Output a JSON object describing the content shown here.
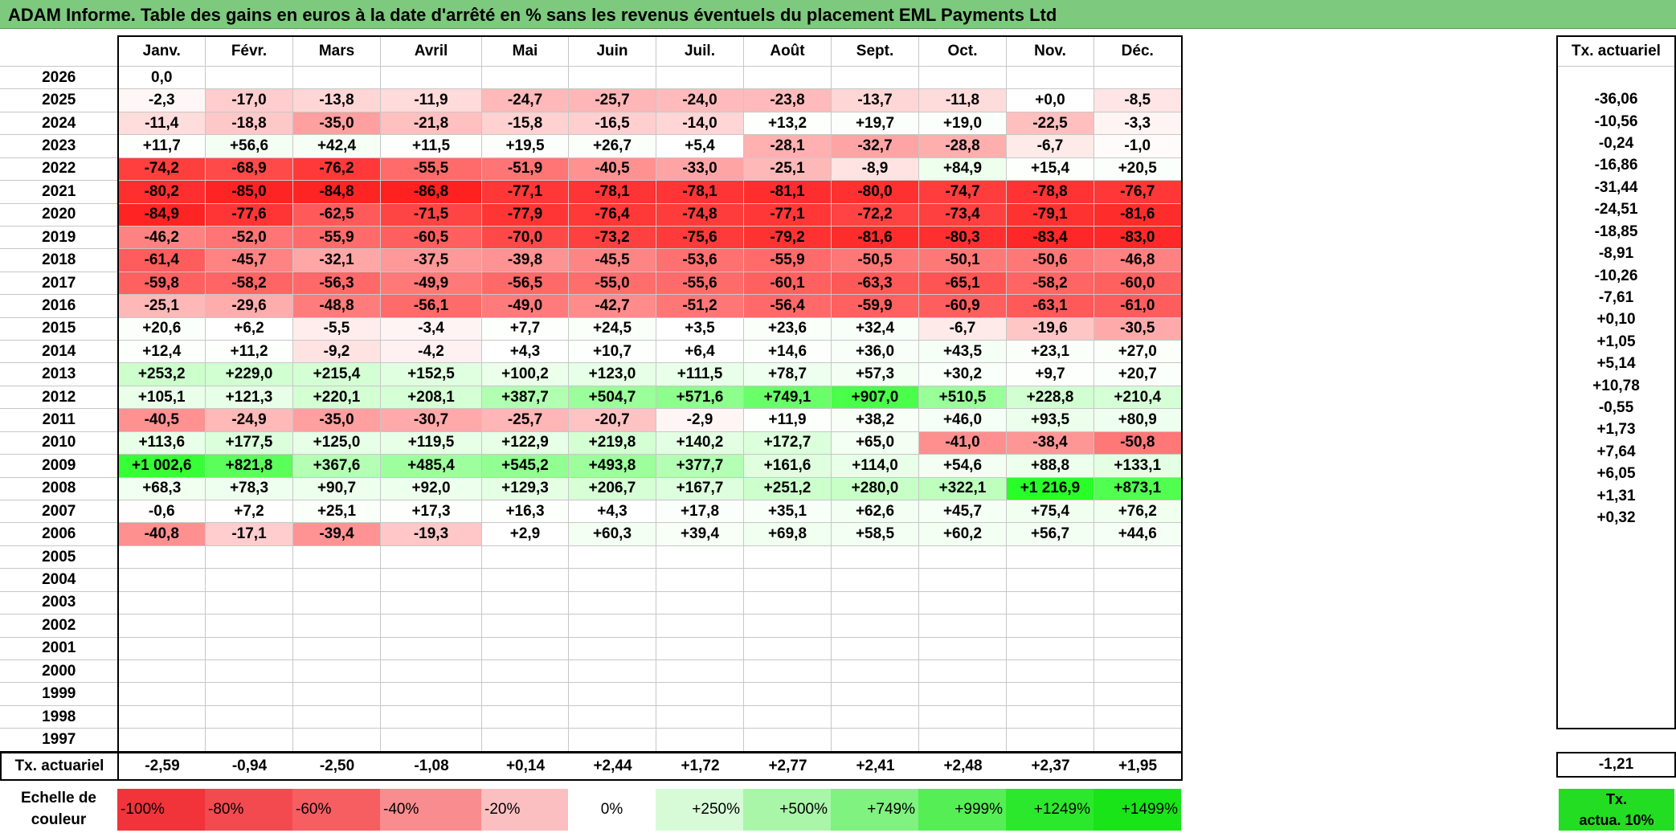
{
  "title": "ADAM Informe. Table des gains en euros à la date d'arrêté en % sans les revenus éventuels du placement EML Payments Ltd",
  "months": [
    "Janv.",
    "Févr.",
    "Mars",
    "Avril",
    "Mai",
    "Juin",
    "Juil.",
    "Août",
    "Sept.",
    "Oct.",
    "Nov.",
    "Déc."
  ],
  "annual_header": "Tx. actuariel",
  "rows": [
    {
      "year": "2026",
      "values": [
        "0,0",
        "",
        "",
        "",
        "",
        "",
        "",
        "",
        "",
        "",
        "",
        ""
      ],
      "rate": ""
    },
    {
      "year": "2025",
      "values": [
        "-2,3",
        "-17,0",
        "-13,8",
        "-11,9",
        "-24,7",
        "-25,7",
        "-24,0",
        "-23,8",
        "-13,7",
        "-11,8",
        "+0,0",
        "-8,5"
      ],
      "rate": "-36,06"
    },
    {
      "year": "2024",
      "values": [
        "-11,4",
        "-18,8",
        "-35,0",
        "-21,8",
        "-15,8",
        "-16,5",
        "-14,0",
        "+13,2",
        "+19,7",
        "+19,0",
        "-22,5",
        "-3,3"
      ],
      "rate": "-10,56"
    },
    {
      "year": "2023",
      "values": [
        "+11,7",
        "+56,6",
        "+42,4",
        "+11,5",
        "+19,5",
        "+26,7",
        "+5,4",
        "-28,1",
        "-32,7",
        "-28,8",
        "-6,7",
        "-1,0"
      ],
      "rate": "-0,24"
    },
    {
      "year": "2022",
      "values": [
        "-74,2",
        "-68,9",
        "-76,2",
        "-55,5",
        "-51,9",
        "-40,5",
        "-33,0",
        "-25,1",
        "-8,9",
        "+84,9",
        "+15,4",
        "+20,5"
      ],
      "rate": "-16,86"
    },
    {
      "year": "2021",
      "values": [
        "-80,2",
        "-85,0",
        "-84,8",
        "-86,8",
        "-77,1",
        "-78,1",
        "-78,1",
        "-81,1",
        "-80,0",
        "-74,7",
        "-78,8",
        "-76,7"
      ],
      "rate": "-31,44"
    },
    {
      "year": "2020",
      "values": [
        "-84,9",
        "-77,6",
        "-62,5",
        "-71,5",
        "-77,9",
        "-76,4",
        "-74,8",
        "-77,1",
        "-72,2",
        "-73,4",
        "-79,1",
        "-81,6"
      ],
      "rate": "-24,51"
    },
    {
      "year": "2019",
      "values": [
        "-46,2",
        "-52,0",
        "-55,9",
        "-60,5",
        "-70,0",
        "-73,2",
        "-75,6",
        "-79,2",
        "-81,6",
        "-80,3",
        "-83,4",
        "-83,0"
      ],
      "rate": "-18,85"
    },
    {
      "year": "2018",
      "values": [
        "-61,4",
        "-45,7",
        "-32,1",
        "-37,5",
        "-39,8",
        "-45,5",
        "-53,6",
        "-55,9",
        "-50,5",
        "-50,1",
        "-50,6",
        "-46,8"
      ],
      "rate": "-8,91"
    },
    {
      "year": "2017",
      "values": [
        "-59,8",
        "-58,2",
        "-56,3",
        "-49,9",
        "-56,5",
        "-55,0",
        "-55,6",
        "-60,1",
        "-63,3",
        "-65,1",
        "-58,2",
        "-60,0"
      ],
      "rate": "-10,26"
    },
    {
      "year": "2016",
      "values": [
        "-25,1",
        "-29,6",
        "-48,8",
        "-56,1",
        "-49,0",
        "-42,7",
        "-51,2",
        "-56,4",
        "-59,9",
        "-60,9",
        "-63,1",
        "-61,0"
      ],
      "rate": "-7,61"
    },
    {
      "year": "2015",
      "values": [
        "+20,6",
        "+6,2",
        "-5,5",
        "-3,4",
        "+7,7",
        "+24,5",
        "+3,5",
        "+23,6",
        "+32,4",
        "-6,7",
        "-19,6",
        "-30,5"
      ],
      "rate": "+0,10"
    },
    {
      "year": "2014",
      "values": [
        "+12,4",
        "+11,2",
        "-9,2",
        "-4,2",
        "+4,3",
        "+10,7",
        "+6,4",
        "+14,6",
        "+36,0",
        "+43,5",
        "+23,1",
        "+27,0"
      ],
      "rate": "+1,05"
    },
    {
      "year": "2013",
      "values": [
        "+253,2",
        "+229,0",
        "+215,4",
        "+152,5",
        "+100,2",
        "+123,0",
        "+111,5",
        "+78,7",
        "+57,3",
        "+30,2",
        "+9,7",
        "+20,7"
      ],
      "rate": "+5,14"
    },
    {
      "year": "2012",
      "values": [
        "+105,1",
        "+121,3",
        "+220,1",
        "+208,1",
        "+387,7",
        "+504,7",
        "+571,6",
        "+749,1",
        "+907,0",
        "+510,5",
        "+228,8",
        "+210,4"
      ],
      "rate": "+10,78"
    },
    {
      "year": "2011",
      "values": [
        "-40,5",
        "-24,9",
        "-35,0",
        "-30,7",
        "-25,7",
        "-20,7",
        "-2,9",
        "+11,9",
        "+38,2",
        "+46,0",
        "+93,5",
        "+80,9"
      ],
      "rate": "-0,55"
    },
    {
      "year": "2010",
      "values": [
        "+113,6",
        "+177,5",
        "+125,0",
        "+119,5",
        "+122,9",
        "+219,8",
        "+140,2",
        "+172,7",
        "+65,0",
        "-41,0",
        "-38,4",
        "-50,8"
      ],
      "rate": "+1,73"
    },
    {
      "year": "2009",
      "values": [
        "+1 002,6",
        "+821,8",
        "+367,6",
        "+485,4",
        "+545,2",
        "+493,8",
        "+377,7",
        "+161,6",
        "+114,0",
        "+54,6",
        "+88,8",
        "+133,1"
      ],
      "rate": "+7,64"
    },
    {
      "year": "2008",
      "values": [
        "+68,3",
        "+78,3",
        "+90,7",
        "+92,0",
        "+129,3",
        "+206,7",
        "+167,7",
        "+251,2",
        "+280,0",
        "+322,1",
        "+1 216,9",
        "+873,1"
      ],
      "rate": "+6,05"
    },
    {
      "year": "2007",
      "values": [
        "-0,6",
        "+7,2",
        "+25,1",
        "+17,3",
        "+16,3",
        "+4,3",
        "+17,8",
        "+35,1",
        "+62,6",
        "+45,7",
        "+75,4",
        "+76,2"
      ],
      "rate": "+1,31"
    },
    {
      "year": "2006",
      "values": [
        "-40,8",
        "-17,1",
        "-39,4",
        "-19,3",
        "+2,9",
        "+60,3",
        "+39,4",
        "+69,8",
        "+58,5",
        "+60,2",
        "+56,7",
        "+44,6"
      ],
      "rate": "+0,32"
    },
    {
      "year": "2005",
      "values": [
        "",
        "",
        "",
        "",
        "",
        "",
        "",
        "",
        "",
        "",
        "",
        ""
      ],
      "rate": ""
    },
    {
      "year": "2004",
      "values": [
        "",
        "",
        "",
        "",
        "",
        "",
        "",
        "",
        "",
        "",
        "",
        ""
      ],
      "rate": ""
    },
    {
      "year": "2003",
      "values": [
        "",
        "",
        "",
        "",
        "",
        "",
        "",
        "",
        "",
        "",
        "",
        ""
      ],
      "rate": ""
    },
    {
      "year": "2002",
      "values": [
        "",
        "",
        "",
        "",
        "",
        "",
        "",
        "",
        "",
        "",
        "",
        ""
      ],
      "rate": ""
    },
    {
      "year": "2001",
      "values": [
        "",
        "",
        "",
        "",
        "",
        "",
        "",
        "",
        "",
        "",
        "",
        ""
      ],
      "rate": ""
    },
    {
      "year": "2000",
      "values": [
        "",
        "",
        "",
        "",
        "",
        "",
        "",
        "",
        "",
        "",
        "",
        ""
      ],
      "rate": ""
    },
    {
      "year": "1999",
      "values": [
        "",
        "",
        "",
        "",
        "",
        "",
        "",
        "",
        "",
        "",
        "",
        ""
      ],
      "rate": ""
    },
    {
      "year": "1998",
      "values": [
        "",
        "",
        "",
        "",
        "",
        "",
        "",
        "",
        "",
        "",
        "",
        ""
      ],
      "rate": ""
    },
    {
      "year": "1997",
      "values": [
        "",
        "",
        "",
        "",
        "",
        "",
        "",
        "",
        "",
        "",
        "",
        ""
      ],
      "rate": ""
    }
  ],
  "footer": {
    "label": "Tx. actuariel",
    "values": [
      "-2,59",
      "-0,94",
      "-2,50",
      "-1,08",
      "+0,14",
      "+2,44",
      "+1,72",
      "+2,77",
      "+2,41",
      "+2,48",
      "+2,37",
      "+1,95"
    ],
    "total": "-1,21"
  },
  "legend": {
    "label_line1": "Echelle de",
    "label_line2": "couleur",
    "swatches": [
      {
        "text": "-100%",
        "color": "#f0343a",
        "align": "l"
      },
      {
        "text": "-80%",
        "color": "#f34a50",
        "align": "l"
      },
      {
        "text": "-60%",
        "color": "#f65e62",
        "align": "l"
      },
      {
        "text": "-40%",
        "color": "#f98c8e",
        "align": "l"
      },
      {
        "text": "-20%",
        "color": "#fcbfc1",
        "align": "l"
      },
      {
        "text": "0%",
        "color": "#ffffff",
        "align": "c"
      },
      {
        "text": "+250%",
        "color": "#d7fbd7",
        "align": "r"
      },
      {
        "text": "+500%",
        "color": "#a9f6a9",
        "align": "r"
      },
      {
        "text": "+749%",
        "color": "#7ff27f",
        "align": "r"
      },
      {
        "text": "+999%",
        "color": "#55ee55",
        "align": "r"
      },
      {
        "text": "+1249%",
        "color": "#2ce82c",
        "align": "r"
      },
      {
        "text": "+1499%",
        "color": "#18e418",
        "align": "r"
      }
    ],
    "tx_line1": "Tx.",
    "tx_line2": "actua. 10%"
  },
  "colors": {
    "title_bg": "#7dc97d",
    "negative_max": "#ff0000",
    "positive_max": "#22dd22"
  }
}
